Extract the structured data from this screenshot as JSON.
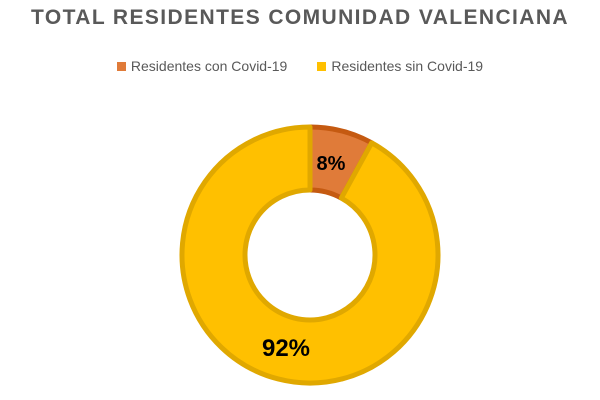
{
  "chart_data": {
    "type": "pie",
    "variant": "donut",
    "title": "TOTAL RESIDENTES COMUNIDAD VALENCIANA",
    "legend_position": "top",
    "categories": [
      "Residentes con Covid-19",
      "Residentes sin Covid-19"
    ],
    "values": [
      8,
      92
    ],
    "data_labels": [
      "8%",
      "92%"
    ],
    "colors": [
      "#E07B39",
      "#FFC000"
    ],
    "border_colors": [
      "#C55A11",
      "#E0A800"
    ]
  }
}
